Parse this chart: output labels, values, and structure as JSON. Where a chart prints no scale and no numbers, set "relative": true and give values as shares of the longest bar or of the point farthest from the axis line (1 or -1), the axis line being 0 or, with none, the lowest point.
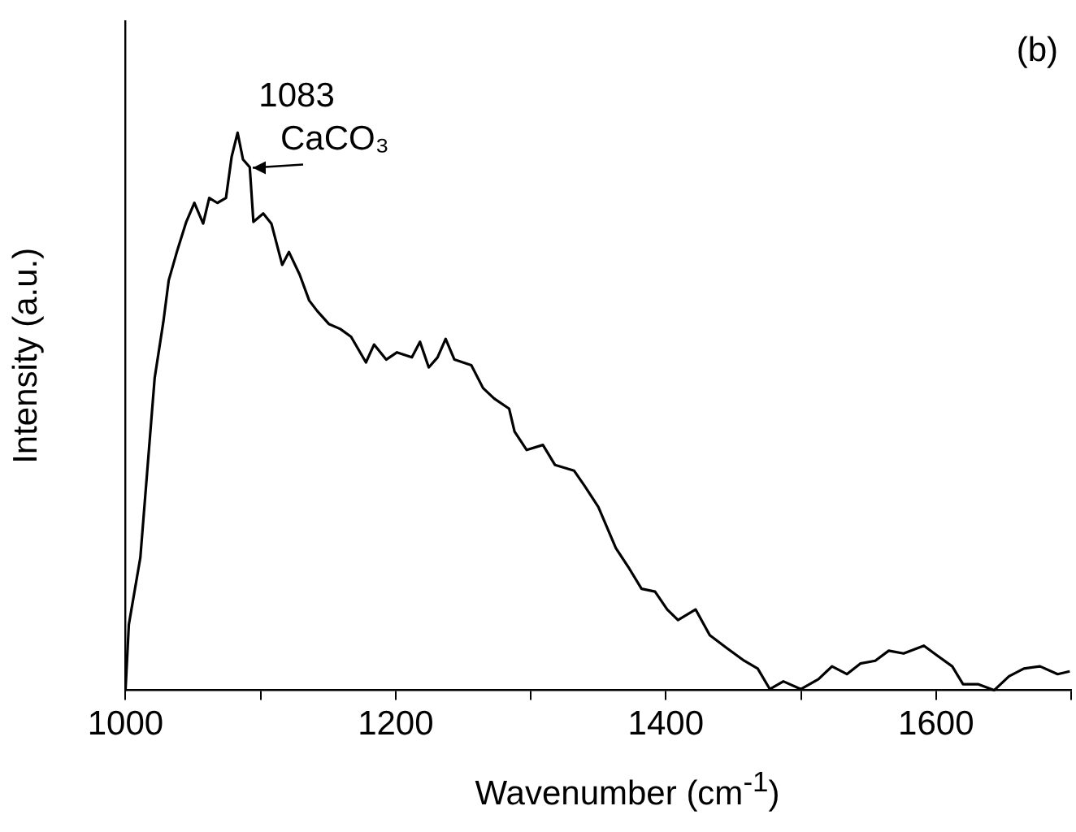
{
  "chart_data": {
    "type": "line",
    "xlabel": "Wavenumber (cm$^{-1}$)",
    "ylabel": "Intensity (a.u.)",
    "relative": true,
    "xlim": [
      1000,
      1700
    ],
    "xticks": [
      1000,
      {
        "value": 1100,
        "label": null
      },
      1200,
      {
        "value": 1300,
        "label": null
      },
      1400,
      {
        "value": 1500,
        "label": null
      },
      1600,
      {
        "value": 1700,
        "label": null
      }
    ],
    "grid": false,
    "legend": false,
    "marker": "none",
    "line_style": "solid",
    "annotations": [
      {
        "text": "1083",
        "x": 1083,
        "y": 1
      },
      {
        "text": "CaCO₃",
        "x": 1093,
        "y": 0.94
      },
      "(b)"
    ],
    "series": [
      {
        "color": "#000000",
        "x": [
          1000,
          1002.5,
          1011,
          1021.6,
          1028,
          1032,
          1038.5,
          1045,
          1051,
          1057.5,
          1062,
          1068,
          1074.4,
          1078.6,
          1083,
          1087,
          1092,
          1094.7,
          1102,
          1108,
          1116,
          1121,
          1129,
          1136,
          1142,
          1150.5,
          1159,
          1167,
          1178,
          1184,
          1193,
          1201,
          1212,
          1218,
          1224.5,
          1231,
          1237,
          1243.5,
          1256,
          1264.7,
          1273,
          1284,
          1288,
          1297,
          1309,
          1318,
          1332,
          1340,
          1350,
          1363,
          1373,
          1382,
          1392,
          1401,
          1409,
          1422,
          1432.5,
          1445,
          1458,
          1468,
          1477,
          1487,
          1500,
          1513,
          1523,
          1534,
          1544,
          1555,
          1565,
          1576,
          1591,
          1601,
          1612,
          1620,
          1631,
          1643,
          1654,
          1665,
          1677,
          1690,
          1699
        ],
        "values": [
          0,
          0.118,
          0.238,
          0.56,
          0.66,
          0.735,
          0.79,
          0.84,
          0.874,
          0.837,
          0.883,
          0.874,
          0.883,
          0.957,
          1,
          0.952,
          0.938,
          0.84,
          0.855,
          0.837,
          0.763,
          0.786,
          0.745,
          0.699,
          0.68,
          0.657,
          0.648,
          0.634,
          0.588,
          0.62,
          0.593,
          0.606,
          0.597,
          0.625,
          0.579,
          0.597,
          0.63,
          0.593,
          0.583,
          0.542,
          0.523,
          0.505,
          0.464,
          0.431,
          0.44,
          0.404,
          0.394,
          0.366,
          0.329,
          0.255,
          0.218,
          0.182,
          0.177,
          0.145,
          0.126,
          0.145,
          0.099,
          0.076,
          0.053,
          0.039,
          0.002,
          0.016,
          0.002,
          0.02,
          0.043,
          0.029,
          0.048,
          0.053,
          0.071,
          0.066,
          0.08,
          0.062,
          0.043,
          0.011,
          0.011,
          0,
          0.025,
          0.039,
          0.043,
          0.029,
          0.034
        ]
      }
    ]
  }
}
